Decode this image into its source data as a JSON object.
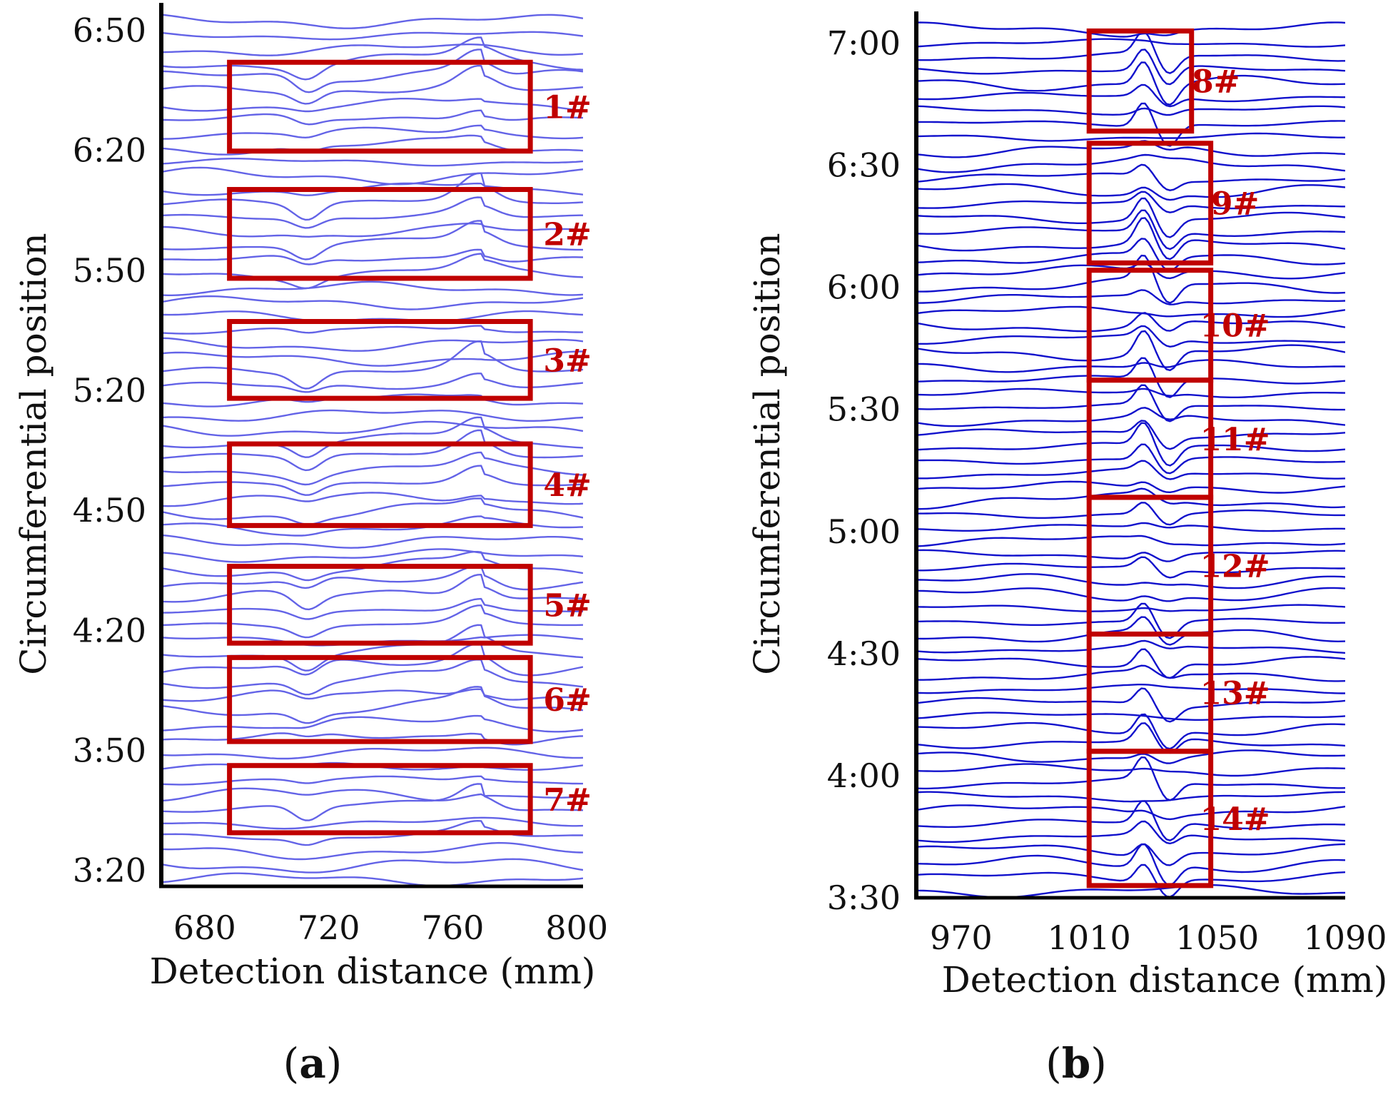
{
  "chart_data": [
    {
      "type": "line",
      "panel_label": "(a)",
      "panel_letter": "a",
      "xlabel": "Detection distance (mm)",
      "ylabel": "Circumferential position",
      "xlim": [
        666,
        802
      ],
      "x_ticks": [
        {
          "value": 680,
          "label": "680"
        },
        {
          "value": 720,
          "label": "720"
        },
        {
          "value": 760,
          "label": "760"
        },
        {
          "value": 800,
          "label": "800"
        }
      ],
      "y_ticks": [
        {
          "value": 6.8333,
          "label": "6:50"
        },
        {
          "value": 6.3333,
          "label": "6:20"
        },
        {
          "value": 5.8333,
          "label": "5:50"
        },
        {
          "value": 5.3333,
          "label": "5:20"
        },
        {
          "value": 4.8333,
          "label": "4:50"
        },
        {
          "value": 4.3333,
          "label": "4:20"
        },
        {
          "value": 3.8333,
          "label": "3:50"
        },
        {
          "value": 3.3333,
          "label": "3:20"
        }
      ],
      "line_color": "#2222dd",
      "box_color": "#c00000",
      "trace_count": 62,
      "signal_shape": "dip-then-bump",
      "boxes": [
        {
          "label": "1#",
          "x_start": 688,
          "x_end": 785,
          "y_top": 6.7,
          "y_bottom": 6.33
        },
        {
          "label": "2#",
          "x_start": 688,
          "x_end": 785,
          "y_top": 6.17,
          "y_bottom": 5.8
        },
        {
          "label": "3#",
          "x_start": 688,
          "x_end": 785,
          "y_top": 5.62,
          "y_bottom": 5.3
        },
        {
          "label": "4#",
          "x_start": 688,
          "x_end": 785,
          "y_top": 5.11,
          "y_bottom": 4.77
        },
        {
          "label": "5#",
          "x_start": 688,
          "x_end": 785,
          "y_top": 4.6,
          "y_bottom": 4.28
        },
        {
          "label": "6#",
          "x_start": 688,
          "x_end": 785,
          "y_top": 4.22,
          "y_bottom": 3.87
        },
        {
          "label": "7#",
          "x_start": 688,
          "x_end": 785,
          "y_top": 3.77,
          "y_bottom": 3.49
        }
      ]
    },
    {
      "type": "line",
      "panel_label": "(b)",
      "panel_letter": "b",
      "xlabel": "Detection distance (mm)",
      "ylabel": "Circumferential position",
      "xlim": [
        956,
        1090
      ],
      "x_ticks": [
        {
          "value": 970,
          "label": "970"
        },
        {
          "value": 1010,
          "label": "1010"
        },
        {
          "value": 1050,
          "label": "1050"
        },
        {
          "value": 1090,
          "label": "1090"
        }
      ],
      "y_ticks": [
        {
          "value": 7.0,
          "label": "7:00"
        },
        {
          "value": 6.5,
          "label": "6:30"
        },
        {
          "value": 6.0,
          "label": "6:00"
        },
        {
          "value": 5.5,
          "label": "5:30"
        },
        {
          "value": 5.0,
          "label": "5:00"
        },
        {
          "value": 4.5,
          "label": "4:30"
        },
        {
          "value": 4.0,
          "label": "4:00"
        },
        {
          "value": 3.5,
          "label": "3:30"
        }
      ],
      "line_color": "#1111cc",
      "box_color": "#c00000",
      "trace_count": 65,
      "signal_shape": "sharp-spike",
      "boxes": [
        {
          "label": "8#",
          "x_start": 1010,
          "x_end": 1042,
          "y_top": 7.05,
          "y_bottom": 6.64
        },
        {
          "label": "9#",
          "x_start": 1010,
          "x_end": 1048,
          "y_top": 6.59,
          "y_bottom": 6.1
        },
        {
          "label": "10#",
          "x_start": 1010,
          "x_end": 1048,
          "y_top": 6.07,
          "y_bottom": 5.62
        },
        {
          "label": "11#",
          "x_start": 1010,
          "x_end": 1048,
          "y_top": 5.62,
          "y_bottom": 5.14
        },
        {
          "label": "12#",
          "x_start": 1010,
          "x_end": 1048,
          "y_top": 5.14,
          "y_bottom": 4.58
        },
        {
          "label": "13#",
          "x_start": 1010,
          "x_end": 1048,
          "y_top": 4.58,
          "y_bottom": 4.1
        },
        {
          "label": "14#",
          "x_start": 1010,
          "x_end": 1048,
          "y_top": 4.1,
          "y_bottom": 3.55
        }
      ]
    }
  ]
}
